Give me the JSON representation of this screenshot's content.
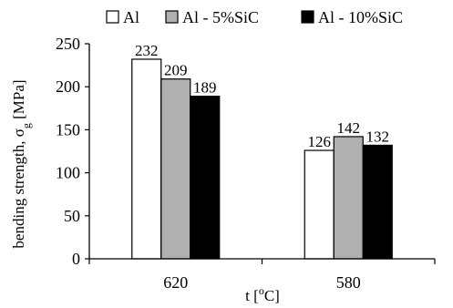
{
  "chart_data": {
    "type": "bar",
    "categories": [
      "620",
      "580"
    ],
    "series": [
      {
        "name": "Al",
        "values": [
          232,
          126
        ],
        "color": "#ffffff"
      },
      {
        "name": "Al - 5%SiC",
        "values": [
          209,
          142
        ],
        "color": "#b0b0b0"
      },
      {
        "name": "Al - 10%SiC",
        "values": [
          189,
          132
        ],
        "color": "#000000"
      }
    ],
    "xlabel": "t [°C]",
    "ylabel": "bending strength, σg [MPa]",
    "ylim": [
      0,
      250
    ],
    "yticks": [
      0,
      50,
      100,
      150,
      200,
      250
    ],
    "grid": false,
    "legend_position": "top"
  }
}
